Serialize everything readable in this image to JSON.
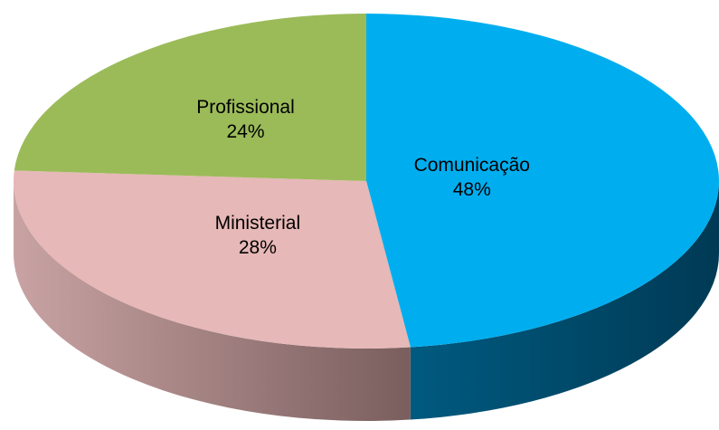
{
  "chart_data": {
    "type": "pie",
    "categories": [
      "Comunicação",
      "Ministerial",
      "Profissional"
    ],
    "values": [
      48,
      28,
      24
    ],
    "value_labels": [
      "48%",
      "28%",
      "24%"
    ],
    "colors": [
      "#00aeef",
      "#e6b8b7",
      "#9bbb59"
    ]
  }
}
